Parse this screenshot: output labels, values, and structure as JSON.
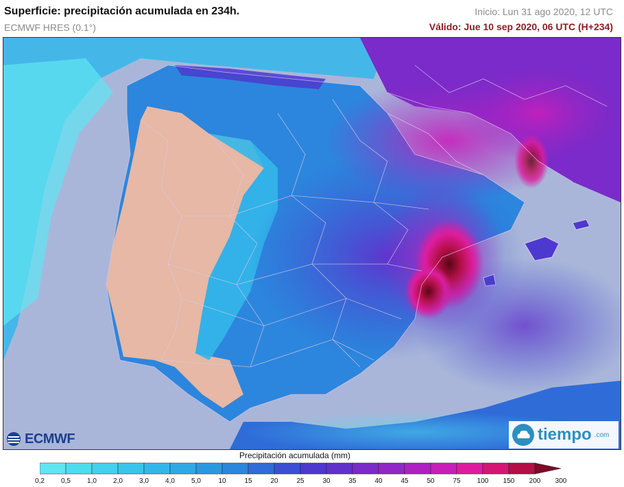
{
  "header": {
    "title": "Superficie: precipitación acumulada en 234h.",
    "model": "ECMWF HRES (0.1°)",
    "init": "Inicio: Lun 31 ago 2020, 12 UTC",
    "valid": "Válido: Jue 10 sep 2020, 06 UTC (H+234)"
  },
  "legend": {
    "title": "Precipitación acumulada (mm)",
    "ticks": [
      "0,2",
      "0,5",
      "1,0",
      "2,0",
      "3,0",
      "4,0",
      "5,0",
      "10",
      "15",
      "20",
      "25",
      "30",
      "35",
      "40",
      "45",
      "50",
      "75",
      "100",
      "150",
      "200",
      "300"
    ],
    "colors": [
      "#5fe6f2",
      "#4edcef",
      "#42d1ee",
      "#39c4ec",
      "#33b7ea",
      "#2fa9e6",
      "#2b99e2",
      "#2c86dd",
      "#2f6cd8",
      "#3a4fd3",
      "#4d39cf",
      "#6131cc",
      "#7a2bc9",
      "#9326c6",
      "#ad21c2",
      "#c81fba",
      "#dd1d9f",
      "#d51673",
      "#b40f47",
      "#7e0a25"
    ]
  },
  "logos": {
    "ecmwf": "ECMWF",
    "tiempo": "tiempo",
    "tiempo_domain": ".com"
  },
  "map": {
    "colors": {
      "sea": "#a9b6da",
      "land_dry": "#e6b8a5",
      "border": "#d9c8e8"
    }
  }
}
